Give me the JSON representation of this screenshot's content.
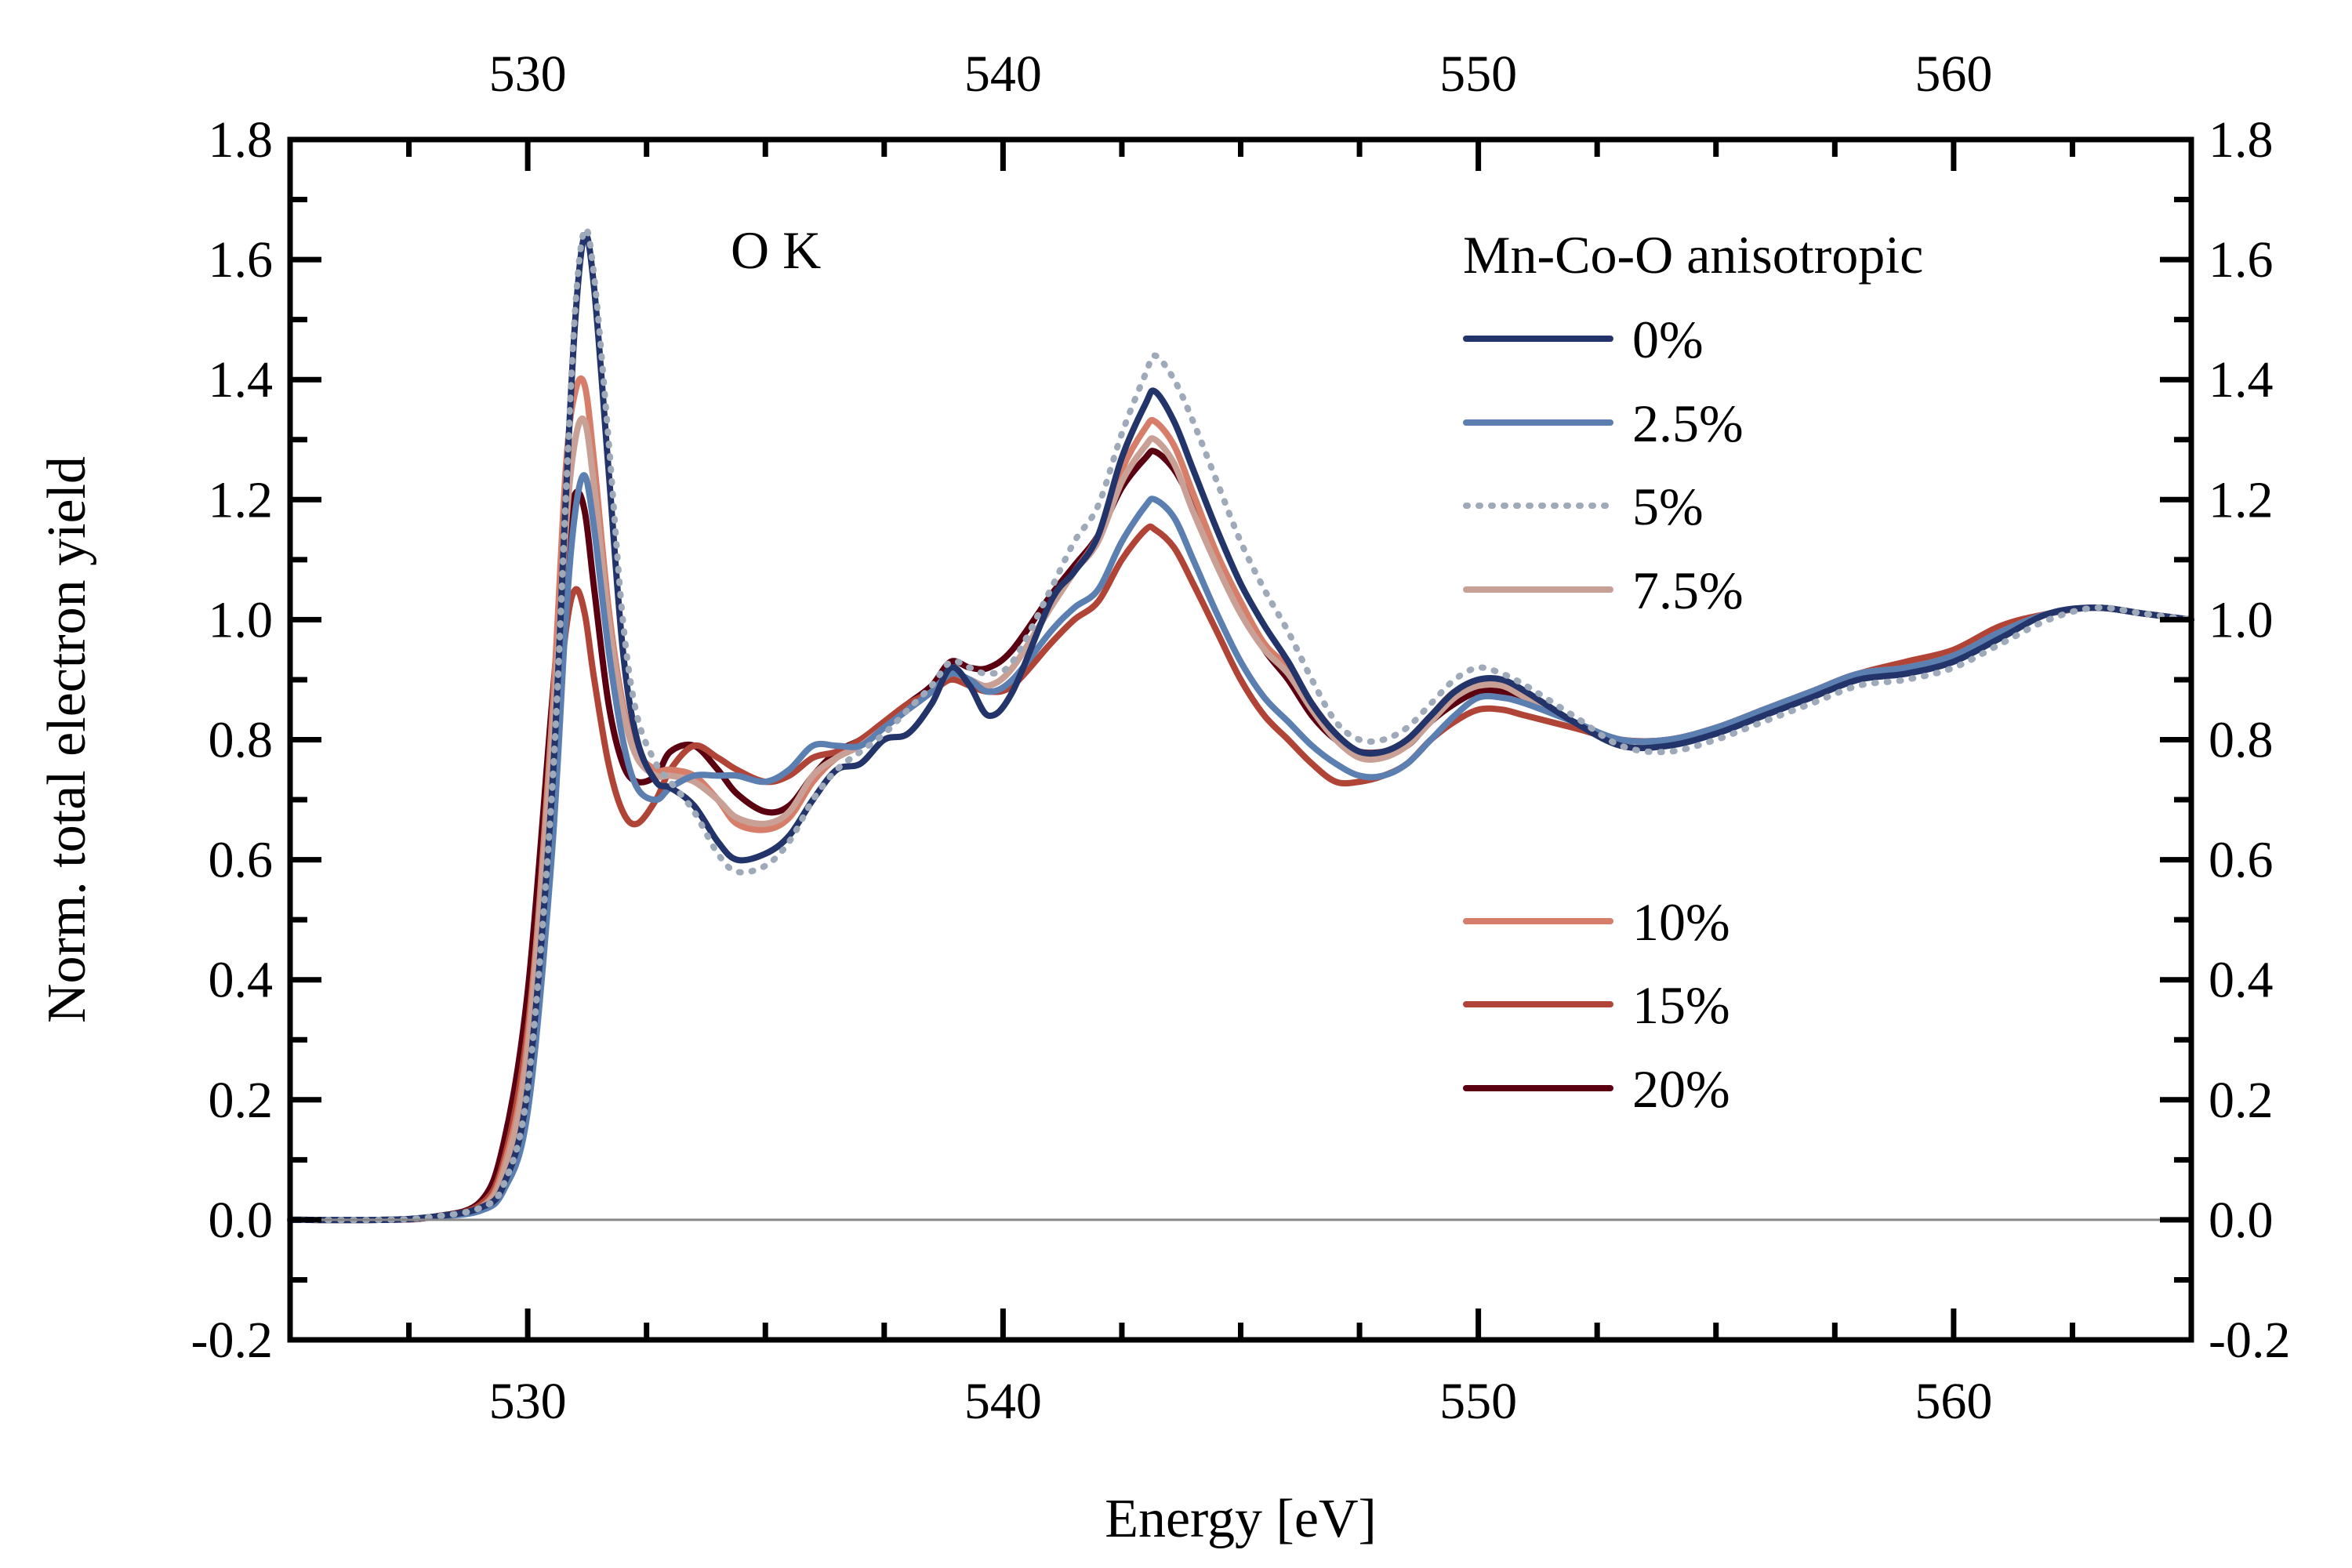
{
  "chart_data": {
    "type": "line",
    "title": "",
    "annotation": "O K",
    "xlabel": "Energy [eV]",
    "ylabel": "Norm. total electron yield",
    "xlim": [
      525,
      565
    ],
    "ylim": [
      -0.2,
      1.8
    ],
    "x_ticks": [
      530,
      540,
      550,
      560
    ],
    "x_tick_labels": [
      "530",
      "540",
      "550",
      "560"
    ],
    "x_minor_step": 2.5,
    "y_ticks": [
      -0.2,
      0.0,
      0.2,
      0.4,
      0.6,
      0.8,
      1.0,
      1.2,
      1.4,
      1.6,
      1.8
    ],
    "y_tick_labels": [
      "-0.2",
      "0.0",
      "0.2",
      "0.4",
      "0.6",
      "0.8",
      "1.0",
      "1.2",
      "1.4",
      "1.6",
      "1.8"
    ],
    "y_minor_step": 0.1,
    "top_axis_labels": true,
    "right_axis_labels": true,
    "baseline": {
      "y": 0.0,
      "color": "#888888"
    },
    "grid": false,
    "legend": {
      "title": "Mn-Co-O anisotropic",
      "placement": "top-right",
      "groups": [
        [
          "0%",
          "2.5%",
          "5%",
          "7.5%"
        ],
        [
          "10%",
          "15%",
          "20%"
        ]
      ]
    },
    "series": [
      {
        "name": "0%",
        "color": "#22346a",
        "dash": "solid",
        "x": [
          525,
          527,
          528,
          529,
          529.5,
          530,
          530.5,
          530.8,
          531,
          531.2,
          531.4,
          531.7,
          532,
          532.3,
          532.7,
          533,
          533.5,
          534,
          534.4,
          535,
          535.5,
          536,
          536.5,
          537,
          537.5,
          538,
          538.5,
          538.9,
          539.3,
          539.7,
          540.2,
          541,
          541.5,
          542,
          542.5,
          543,
          543.2,
          543.6,
          544,
          544.5,
          545,
          545.5,
          546,
          546.5,
          547,
          547.5,
          548,
          548.5,
          549,
          549.5,
          550,
          550.5,
          551,
          552,
          553,
          554,
          555,
          556,
          557,
          558,
          559,
          560,
          561,
          562,
          563,
          564,
          565
        ],
        "y": [
          0,
          0,
          0.005,
          0.02,
          0.06,
          0.22,
          0.7,
          1.2,
          1.5,
          1.64,
          1.55,
          1.25,
          0.95,
          0.8,
          0.73,
          0.72,
          0.69,
          0.63,
          0.6,
          0.61,
          0.64,
          0.7,
          0.75,
          0.76,
          0.8,
          0.81,
          0.86,
          0.92,
          0.89,
          0.84,
          0.88,
          1.03,
          1.08,
          1.14,
          1.27,
          1.36,
          1.38,
          1.33,
          1.25,
          1.15,
          1.06,
          0.99,
          0.93,
          0.86,
          0.81,
          0.78,
          0.78,
          0.8,
          0.84,
          0.88,
          0.9,
          0.9,
          0.88,
          0.83,
          0.79,
          0.79,
          0.81,
          0.84,
          0.87,
          0.9,
          0.91,
          0.93,
          0.97,
          1.01,
          1.02,
          1.01,
          1.0
        ]
      },
      {
        "name": "2.5%",
        "color": "#5b7fb0",
        "dash": "solid",
        "x": [
          525,
          527,
          528,
          529,
          529.5,
          530,
          530.5,
          530.8,
          531,
          531.2,
          531.4,
          531.7,
          532,
          532.3,
          532.7,
          533,
          533.5,
          534,
          534.4,
          535,
          535.5,
          536,
          536.5,
          537,
          537.5,
          538,
          538.5,
          538.9,
          539.3,
          539.7,
          540.2,
          541,
          541.5,
          542,
          542.5,
          543,
          543.2,
          543.6,
          544,
          544.5,
          545,
          545.5,
          546,
          546.5,
          547,
          547.5,
          548,
          548.5,
          549,
          549.5,
          550,
          550.5,
          551,
          552,
          553,
          554,
          555,
          556,
          557,
          558,
          559,
          560,
          561,
          562,
          563,
          564,
          565
        ],
        "y": [
          0,
          0,
          0.005,
          0.015,
          0.05,
          0.18,
          0.6,
          1.0,
          1.18,
          1.24,
          1.15,
          0.95,
          0.8,
          0.72,
          0.7,
          0.72,
          0.74,
          0.74,
          0.74,
          0.73,
          0.75,
          0.79,
          0.79,
          0.79,
          0.82,
          0.85,
          0.88,
          0.91,
          0.9,
          0.88,
          0.9,
          0.98,
          1.02,
          1.05,
          1.13,
          1.19,
          1.2,
          1.17,
          1.1,
          1.01,
          0.93,
          0.87,
          0.83,
          0.79,
          0.76,
          0.74,
          0.74,
          0.76,
          0.8,
          0.84,
          0.87,
          0.87,
          0.86,
          0.83,
          0.8,
          0.8,
          0.82,
          0.85,
          0.88,
          0.91,
          0.92,
          0.94,
          0.98,
          1.01,
          1.02,
          1.01,
          1.0
        ]
      },
      {
        "name": "5%",
        "color": "#9ea9b9",
        "dash": "dotted",
        "x": [
          525,
          527,
          528,
          529,
          529.5,
          530,
          530.5,
          530.8,
          531,
          531.2,
          531.4,
          531.7,
          532,
          532.3,
          532.7,
          533,
          533.5,
          534,
          534.4,
          535,
          535.5,
          536,
          536.5,
          537,
          537.5,
          538,
          538.5,
          538.9,
          539.3,
          539.7,
          540.2,
          541,
          541.5,
          542,
          542.5,
          543,
          543.2,
          543.6,
          544,
          544.5,
          545,
          545.5,
          546,
          546.5,
          547,
          547.5,
          548,
          548.5,
          549,
          549.5,
          550,
          550.5,
          551,
          552,
          553,
          554,
          555,
          556,
          557,
          558,
          559,
          560,
          561,
          562,
          563,
          564,
          565
        ],
        "y": [
          0,
          0,
          0.005,
          0.02,
          0.06,
          0.22,
          0.7,
          1.2,
          1.52,
          1.65,
          1.57,
          1.3,
          1.0,
          0.84,
          0.76,
          0.73,
          0.68,
          0.61,
          0.58,
          0.59,
          0.63,
          0.7,
          0.75,
          0.78,
          0.81,
          0.85,
          0.89,
          0.93,
          0.92,
          0.91,
          0.93,
          1.05,
          1.13,
          1.19,
          1.31,
          1.41,
          1.44,
          1.4,
          1.33,
          1.23,
          1.13,
          1.05,
          0.98,
          0.9,
          0.83,
          0.8,
          0.8,
          0.82,
          0.86,
          0.9,
          0.92,
          0.91,
          0.89,
          0.84,
          0.79,
          0.78,
          0.8,
          0.83,
          0.86,
          0.89,
          0.9,
          0.92,
          0.96,
          1.0,
          1.02,
          1.01,
          1.0
        ]
      },
      {
        "name": "7.5%",
        "color": "#c9a096",
        "dash": "solid",
        "x": [
          525,
          527,
          528,
          529,
          529.5,
          530,
          530.5,
          530.8,
          531,
          531.2,
          531.4,
          531.7,
          532,
          532.3,
          532.7,
          533,
          533.5,
          534,
          534.4,
          535,
          535.5,
          536,
          536.5,
          537,
          537.5,
          538,
          538.5,
          538.9,
          539.3,
          539.7,
          540.2,
          541,
          541.5,
          542,
          542.5,
          543,
          543.2,
          543.6,
          544,
          544.5,
          545,
          545.5,
          546,
          546.5,
          547,
          547.5,
          548,
          548.5,
          549,
          549.5,
          550,
          550.5,
          551,
          552,
          553,
          554,
          555,
          556,
          557,
          558,
          559,
          560,
          561,
          562,
          563,
          564,
          565
        ],
        "y": [
          0,
          0,
          0.005,
          0.02,
          0.08,
          0.28,
          0.78,
          1.15,
          1.3,
          1.33,
          1.22,
          1.0,
          0.85,
          0.77,
          0.74,
          0.74,
          0.73,
          0.7,
          0.67,
          0.66,
          0.68,
          0.74,
          0.77,
          0.79,
          0.82,
          0.85,
          0.88,
          0.91,
          0.9,
          0.89,
          0.92,
          1.02,
          1.08,
          1.13,
          1.23,
          1.29,
          1.3,
          1.26,
          1.18,
          1.09,
          1.01,
          0.95,
          0.91,
          0.85,
          0.8,
          0.77,
          0.77,
          0.79,
          0.83,
          0.87,
          0.89,
          0.89,
          0.87,
          0.83,
          0.8,
          0.8,
          0.82,
          0.85,
          0.88,
          0.91,
          0.92,
          0.94,
          0.98,
          1.01,
          1.02,
          1.01,
          1.0
        ]
      },
      {
        "name": "10%",
        "color": "#d77e6a",
        "dash": "solid",
        "x": [
          525,
          527,
          528,
          529,
          529.5,
          530,
          530.5,
          530.8,
          531,
          531.2,
          531.4,
          531.7,
          532,
          532.3,
          532.7,
          533,
          533.5,
          534,
          534.4,
          535,
          535.5,
          536,
          536.5,
          537,
          537.5,
          538,
          538.5,
          538.9,
          539.3,
          539.7,
          540.2,
          541,
          541.5,
          542,
          542.5,
          543,
          543.2,
          543.6,
          544,
          544.5,
          545,
          545.5,
          546,
          546.5,
          547,
          547.5,
          548,
          548.5,
          549,
          549.5,
          550,
          550.5,
          551,
          552,
          553,
          554,
          555,
          556,
          557,
          558,
          559,
          560,
          561,
          562,
          563,
          564,
          565
        ],
        "y": [
          0,
          0,
          0.005,
          0.02,
          0.09,
          0.3,
          0.82,
          1.25,
          1.38,
          1.39,
          1.26,
          1.02,
          0.86,
          0.78,
          0.75,
          0.75,
          0.74,
          0.7,
          0.66,
          0.65,
          0.67,
          0.73,
          0.77,
          0.79,
          0.82,
          0.85,
          0.88,
          0.91,
          0.9,
          0.89,
          0.92,
          1.02,
          1.08,
          1.14,
          1.25,
          1.32,
          1.33,
          1.29,
          1.21,
          1.11,
          1.03,
          0.96,
          0.92,
          0.86,
          0.81,
          0.78,
          0.78,
          0.8,
          0.84,
          0.88,
          0.89,
          0.89,
          0.87,
          0.83,
          0.8,
          0.8,
          0.82,
          0.85,
          0.88,
          0.91,
          0.92,
          0.94,
          0.98,
          1.01,
          1.02,
          1.01,
          1.0
        ]
      },
      {
        "name": "15%",
        "color": "#b04437",
        "dash": "solid",
        "x": [
          525,
          527,
          528,
          529,
          529.5,
          530,
          530.5,
          530.8,
          531,
          531.2,
          531.4,
          531.7,
          532,
          532.3,
          532.7,
          533,
          533.5,
          534,
          534.4,
          535,
          535.5,
          536,
          536.5,
          537,
          537.5,
          538,
          538.5,
          538.9,
          539.3,
          539.7,
          540.2,
          541,
          541.5,
          542,
          542.5,
          543,
          543.2,
          543.6,
          544,
          544.5,
          545,
          545.5,
          546,
          546.5,
          547,
          547.5,
          548,
          548.5,
          549,
          549.5,
          550,
          550.5,
          551,
          552,
          553,
          554,
          555,
          556,
          557,
          558,
          559,
          560,
          561,
          562,
          563,
          564,
          565
        ],
        "y": [
          0,
          0,
          0.005,
          0.025,
          0.1,
          0.32,
          0.75,
          0.98,
          1.05,
          1.01,
          0.9,
          0.76,
          0.68,
          0.66,
          0.7,
          0.75,
          0.79,
          0.77,
          0.75,
          0.73,
          0.74,
          0.77,
          0.78,
          0.8,
          0.83,
          0.86,
          0.88,
          0.9,
          0.89,
          0.88,
          0.89,
          0.96,
          1.0,
          1.03,
          1.1,
          1.15,
          1.15,
          1.12,
          1.06,
          0.98,
          0.9,
          0.84,
          0.8,
          0.76,
          0.73,
          0.73,
          0.74,
          0.76,
          0.8,
          0.83,
          0.85,
          0.85,
          0.84,
          0.82,
          0.8,
          0.8,
          0.82,
          0.85,
          0.88,
          0.91,
          0.93,
          0.95,
          0.99,
          1.01,
          1.02,
          1.01,
          1.0
        ]
      },
      {
        "name": "20%",
        "color": "#5a0010",
        "dash": "solid",
        "x": [
          525,
          527,
          528,
          529,
          529.5,
          530,
          530.5,
          530.8,
          531,
          531.2,
          531.4,
          531.7,
          532,
          532.3,
          532.7,
          533,
          533.5,
          534,
          534.4,
          535,
          535.5,
          536,
          536.5,
          537,
          537.5,
          538,
          538.5,
          538.9,
          539.3,
          539.7,
          540.2,
          541,
          541.5,
          542,
          542.5,
          543,
          543.2,
          543.6,
          544,
          544.5,
          545,
          545.5,
          546,
          546.5,
          547,
          547.5,
          548,
          548.5,
          549,
          549.5,
          550,
          550.5,
          551,
          552,
          553,
          554,
          555,
          556,
          557,
          558,
          559,
          560,
          561,
          562,
          563,
          564,
          565
        ],
        "y": [
          0,
          0,
          0.005,
          0.03,
          0.13,
          0.38,
          0.85,
          1.12,
          1.21,
          1.18,
          1.05,
          0.86,
          0.76,
          0.73,
          0.74,
          0.78,
          0.79,
          0.75,
          0.71,
          0.68,
          0.69,
          0.74,
          0.78,
          0.8,
          0.83,
          0.86,
          0.89,
          0.93,
          0.92,
          0.92,
          0.95,
          1.04,
          1.09,
          1.14,
          1.22,
          1.27,
          1.28,
          1.25,
          1.19,
          1.1,
          1.02,
          0.95,
          0.9,
          0.84,
          0.8,
          0.78,
          0.78,
          0.79,
          0.83,
          0.86,
          0.88,
          0.88,
          0.87,
          0.83,
          0.8,
          0.8,
          0.82,
          0.85,
          0.88,
          0.91,
          0.92,
          0.94,
          0.98,
          1.01,
          1.02,
          1.01,
          1.0
        ]
      }
    ]
  }
}
